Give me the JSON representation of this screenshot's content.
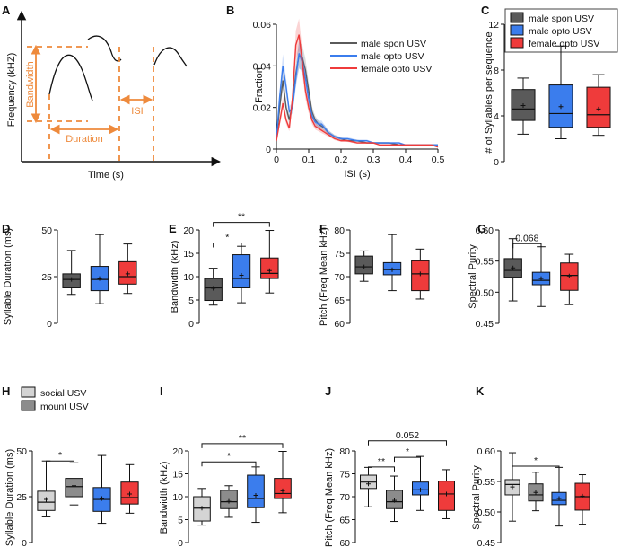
{
  "colors": {
    "spon": "#5a5a5a",
    "opto": "#3b7ded",
    "female": "#ef3b3b",
    "social": "#d4d4d4",
    "mount": "#8c8c8c",
    "orange": "#ee8a3c"
  },
  "panels": {
    "A": "A",
    "B": "B",
    "C": "C",
    "D": "D",
    "E": "E",
    "F": "F",
    "G": "G",
    "H": "H",
    "I": "I",
    "J": "J",
    "K": "K"
  },
  "schematic": {
    "ylabel": "Frequency (kHZ)",
    "xlabel": "Time (s)",
    "bandwidth": "Bandwidth",
    "duration": "Duration",
    "isi": "ISI"
  },
  "legends": {
    "top": [
      "male spon USV",
      "male opto USV",
      "female opto USV"
    ],
    "bottom": [
      "social USV",
      "mount USV"
    ]
  },
  "chart_data": [
    {
      "id": "B",
      "type": "line",
      "xlabel": "ISI (s)",
      "ylabel": "Fraction",
      "xlim": [
        0,
        0.5
      ],
      "ylim": [
        0,
        0.06
      ],
      "xticks": [
        "0",
        "0.1",
        "0.2",
        "0.3",
        "0.4",
        "0.5"
      ],
      "yticks": [
        "0",
        "0.02",
        "0.04",
        "0.06"
      ],
      "x": [
        0.0,
        0.01,
        0.02,
        0.03,
        0.04,
        0.05,
        0.06,
        0.07,
        0.08,
        0.09,
        0.1,
        0.11,
        0.12,
        0.13,
        0.14,
        0.15,
        0.16,
        0.17,
        0.18,
        0.2,
        0.22,
        0.25,
        0.28,
        0.3,
        0.32,
        0.35,
        0.38,
        0.4,
        0.42,
        0.45,
        0.48,
        0.5
      ],
      "series": [
        {
          "name": "male spon USV",
          "values": [
            0.004,
            0.02,
            0.033,
            0.02,
            0.014,
            0.022,
            0.036,
            0.045,
            0.044,
            0.038,
            0.028,
            0.018,
            0.014,
            0.012,
            0.011,
            0.01,
            0.008,
            0.007,
            0.006,
            0.005,
            0.004,
            0.004,
            0.003,
            0.003,
            0.003,
            0.003,
            0.002,
            0.002,
            0.002,
            0.002,
            0.002,
            0.002
          ]
        },
        {
          "name": "male opto USV",
          "values": [
            0.005,
            0.025,
            0.04,
            0.03,
            0.018,
            0.02,
            0.034,
            0.046,
            0.042,
            0.034,
            0.024,
            0.016,
            0.013,
            0.012,
            0.012,
            0.01,
            0.008,
            0.007,
            0.006,
            0.005,
            0.005,
            0.004,
            0.004,
            0.003,
            0.003,
            0.003,
            0.003,
            0.002,
            0.002,
            0.002,
            0.002,
            0.002
          ]
        },
        {
          "name": "female opto USV",
          "values": [
            0.004,
            0.013,
            0.022,
            0.014,
            0.01,
            0.025,
            0.05,
            0.055,
            0.042,
            0.028,
            0.02,
            0.014,
            0.011,
            0.01,
            0.009,
            0.008,
            0.007,
            0.006,
            0.005,
            0.004,
            0.004,
            0.003,
            0.003,
            0.003,
            0.002,
            0.002,
            0.002,
            0.002,
            0.002,
            0.002,
            0.002,
            0.001
          ]
        }
      ]
    },
    {
      "id": "C",
      "type": "box",
      "ylabel": "# of Syllables per sequence",
      "ylim": [
        0,
        12
      ],
      "yticks": [
        "0",
        "4",
        "8",
        "12"
      ],
      "sig": [],
      "groups": [
        {
          "name": "male spon USV",
          "color": "spon",
          "min": 2.4,
          "q1": 3.6,
          "median": 4.6,
          "q3": 6.3,
          "max": 7.3,
          "mean": 4.9
        },
        {
          "name": "male opto USV",
          "color": "opto",
          "min": 2.0,
          "q1": 3.0,
          "median": 4.2,
          "q3": 6.7,
          "max": 10.1,
          "mean": 4.8
        },
        {
          "name": "female opto USV",
          "color": "female",
          "min": 2.3,
          "q1": 3.0,
          "median": 4.1,
          "q3": 6.5,
          "max": 7.6,
          "mean": 4.6
        }
      ]
    },
    {
      "id": "D",
      "type": "box",
      "ylabel": "Syllable Duration (ms)",
      "ylim": [
        0,
        50
      ],
      "yticks": [
        "0",
        "25",
        "50"
      ],
      "sig": [],
      "groups": [
        {
          "name": "male spon USV",
          "color": "spon",
          "min": 15.5,
          "q1": 19,
          "median": 23.5,
          "q3": 26.5,
          "max": 39,
          "mean": 23.5
        },
        {
          "name": "male opto USV",
          "color": "opto",
          "min": 10.5,
          "q1": 17.5,
          "median": 23.5,
          "q3": 30.5,
          "max": 47.5,
          "mean": 24
        },
        {
          "name": "female opto USV",
          "color": "female",
          "min": 16,
          "q1": 21,
          "median": 25,
          "q3": 33,
          "max": 42.5,
          "mean": 26.5
        }
      ]
    },
    {
      "id": "E",
      "type": "box",
      "ylabel": "Bandwidth (kHz)",
      "ylim": [
        0,
        20
      ],
      "yticks": [
        "0",
        "5",
        "10",
        "15",
        "20"
      ],
      "sig": [
        {
          "a": 0,
          "b": 1,
          "label": "*",
          "y": 17.2
        },
        {
          "a": 0,
          "b": 2,
          "label": "**",
          "y": 21.6
        }
      ],
      "groups": [
        {
          "name": "male spon USV",
          "color": "spon",
          "min": 3.9,
          "q1": 4.9,
          "median": 7.6,
          "q3": 9.6,
          "max": 11.8,
          "mean": 7.5
        },
        {
          "name": "male opto USV",
          "color": "opto",
          "min": 4.4,
          "q1": 7.6,
          "median": 9.6,
          "q3": 14.7,
          "max": 16.5,
          "mean": 10.3
        },
        {
          "name": "female opto USV",
          "color": "female",
          "min": 6.5,
          "q1": 9.6,
          "median": 10.7,
          "q3": 14.0,
          "max": 19.9,
          "mean": 11.3
        }
      ]
    },
    {
      "id": "F",
      "type": "box",
      "ylabel": "Pitch (Freq Mean kHz)",
      "ylim": [
        60,
        80
      ],
      "yticks": [
        "60",
        "65",
        "70",
        "75",
        "80"
      ],
      "sig": [],
      "groups": [
        {
          "name": "male spon USV",
          "color": "spon",
          "min": 69,
          "q1": 70.6,
          "median": 72.1,
          "q3": 74.4,
          "max": 75.5,
          "mean": 72.1
        },
        {
          "name": "male opto USV",
          "color": "opto",
          "min": 67,
          "q1": 70.4,
          "median": 71.5,
          "q3": 73,
          "max": 79,
          "mean": 71.5
        },
        {
          "name": "female opto USV",
          "color": "female",
          "min": 65.2,
          "q1": 67,
          "median": 70.6,
          "q3": 73.4,
          "max": 75.9,
          "mean": 70.6
        }
      ]
    },
    {
      "id": "G",
      "type": "box",
      "ylabel": "Spectral Purity",
      "ylim": [
        0.45,
        0.6
      ],
      "yticks": [
        "0.45",
        "0.50",
        "0.55",
        "0.60"
      ],
      "sig": [
        {
          "a": 0,
          "b": 1,
          "label": "0.068",
          "y": 0.578
        }
      ],
      "groups": [
        {
          "name": "male spon USV",
          "color": "spon",
          "min": 0.486,
          "q1": 0.524,
          "median": 0.535,
          "q3": 0.554,
          "max": 0.586,
          "mean": 0.539
        },
        {
          "name": "male opto USV",
          "color": "opto",
          "min": 0.477,
          "q1": 0.512,
          "median": 0.519,
          "q3": 0.532,
          "max": 0.573,
          "mean": 0.522
        },
        {
          "name": "female opto USV",
          "color": "female",
          "min": 0.48,
          "q1": 0.503,
          "median": 0.527,
          "q3": 0.547,
          "max": 0.561,
          "mean": 0.526
        }
      ]
    },
    {
      "id": "H",
      "type": "box",
      "ylabel": "Syllable Duration (ms)",
      "ylim": [
        0,
        50
      ],
      "yticks": [
        "0",
        "25",
        "50"
      ],
      "sig": [
        {
          "a": 0,
          "b": 1,
          "label": "*",
          "y": 44.5
        }
      ],
      "groups": [
        {
          "name": "social USV",
          "color": "social",
          "min": 14,
          "q1": 17.5,
          "median": 22,
          "q3": 28,
          "max": 44.5,
          "mean": 23.5
        },
        {
          "name": "mount USV",
          "color": "mount",
          "min": 20.5,
          "q1": 25,
          "median": 30.5,
          "q3": 35,
          "max": 43.5,
          "mean": 31
        },
        {
          "name": "male opto USV",
          "color": "opto",
          "min": 10.5,
          "q1": 17,
          "median": 23.5,
          "q3": 30,
          "max": 47.5,
          "mean": 24
        },
        {
          "name": "female opto USV",
          "color": "female",
          "min": 16,
          "q1": 21,
          "median": 24.5,
          "q3": 33,
          "max": 42.5,
          "mean": 26.5
        }
      ]
    },
    {
      "id": "I",
      "type": "box",
      "ylabel": "Bandwidth (kHz)",
      "ylim": [
        0,
        20
      ],
      "yticks": [
        "0",
        "5",
        "10",
        "15",
        "20"
      ],
      "sig": [
        {
          "a": 0,
          "b": 2,
          "label": "*",
          "y": 17.6
        },
        {
          "a": 0,
          "b": 3,
          "label": "**",
          "y": 21.6
        }
      ],
      "groups": [
        {
          "name": "social USV",
          "color": "social",
          "min": 3.8,
          "q1": 4.7,
          "median": 7.5,
          "q3": 10,
          "max": 11.8,
          "mean": 7.5
        },
        {
          "name": "mount USV",
          "color": "mount",
          "min": 5.5,
          "q1": 7.4,
          "median": 8.9,
          "q3": 11.4,
          "max": 12.4,
          "mean": 9
        },
        {
          "name": "male opto USV",
          "color": "opto",
          "min": 4.4,
          "q1": 7.6,
          "median": 9.6,
          "q3": 14.7,
          "max": 16.5,
          "mean": 10.3
        },
        {
          "name": "female opto USV",
          "color": "female",
          "min": 6.5,
          "q1": 9.6,
          "median": 10.7,
          "q3": 14,
          "max": 19.9,
          "mean": 11.3
        }
      ]
    },
    {
      "id": "J",
      "type": "box",
      "ylabel": "Pitch (Freq Mean kHz)",
      "ylim": [
        60,
        80
      ],
      "yticks": [
        "60",
        "65",
        "70",
        "75",
        "80"
      ],
      "sig": [
        {
          "a": 0,
          "b": 1,
          "label": "**",
          "y": 76.5
        },
        {
          "a": 1,
          "b": 2,
          "label": "*",
          "y": 78.6
        },
        {
          "a": 0,
          "b": 3,
          "label": "0.052",
          "y": 82.2
        }
      ],
      "groups": [
        {
          "name": "social USV",
          "color": "social",
          "min": 67.8,
          "q1": 71.8,
          "median": 73.2,
          "q3": 74.7,
          "max": 76.4,
          "mean": 72.8
        },
        {
          "name": "mount USV",
          "color": "mount",
          "min": 64.6,
          "q1": 67.4,
          "median": 68.9,
          "q3": 71.4,
          "max": 74.5,
          "mean": 69.2
        },
        {
          "name": "male opto USV",
          "color": "opto",
          "min": 67,
          "q1": 70.4,
          "median": 71.5,
          "q3": 73.2,
          "max": 78.8,
          "mean": 71.5
        },
        {
          "name": "female opto USV",
          "color": "female",
          "min": 65.2,
          "q1": 67,
          "median": 70.6,
          "q3": 73.4,
          "max": 75.9,
          "mean": 70.6
        }
      ]
    },
    {
      "id": "K",
      "type": "box",
      "ylabel": "Spectral Purity",
      "ylim": [
        0.45,
        0.6
      ],
      "yticks": [
        "0.45",
        "0.50",
        "0.55",
        "0.60"
      ],
      "sig": [
        {
          "a": 0,
          "b": 2,
          "label": "*",
          "y": 0.575
        }
      ],
      "groups": [
        {
          "name": "social USV",
          "color": "social",
          "min": 0.485,
          "q1": 0.528,
          "median": 0.545,
          "q3": 0.553,
          "max": 0.597,
          "mean": 0.541
        },
        {
          "name": "mount USV",
          "color": "mount",
          "min": 0.502,
          "q1": 0.518,
          "median": 0.528,
          "q3": 0.546,
          "max": 0.565,
          "mean": 0.532
        },
        {
          "name": "male opto USV",
          "color": "opto",
          "min": 0.477,
          "q1": 0.512,
          "median": 0.519,
          "q3": 0.532,
          "max": 0.573,
          "mean": 0.522
        },
        {
          "name": "female opto USV",
          "color": "female",
          "min": 0.48,
          "q1": 0.503,
          "median": 0.525,
          "q3": 0.547,
          "max": 0.561,
          "mean": 0.526
        }
      ]
    }
  ]
}
